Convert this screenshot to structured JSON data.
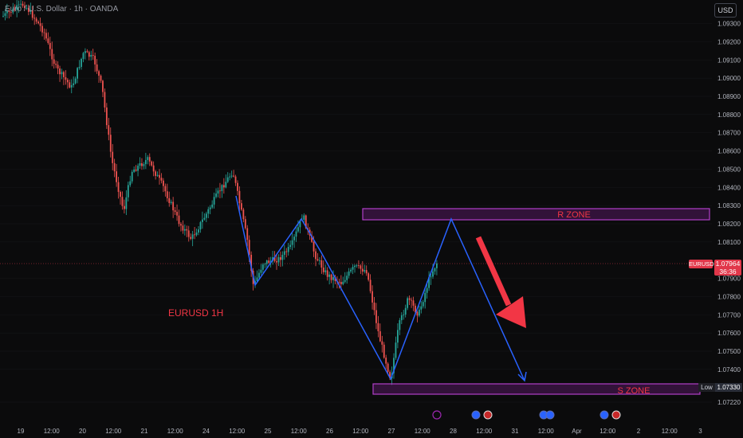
{
  "header": {
    "title": "Euro / U.S. Dollar · 1h · OANDA"
  },
  "currency_button": "USD",
  "current_price": {
    "symbol": "EURUSD",
    "value": "1.07964",
    "countdown": "36:36"
  },
  "low_marker": {
    "label": "Low",
    "value": "1.07330"
  },
  "annotations": {
    "chart_label": "EURUSD 1H",
    "r_zone": "R ZONE",
    "s_zone": "S ZONE"
  },
  "colors": {
    "up": "#26a69a",
    "down": "#ef5350",
    "zone": "#9c27b0",
    "path": "#2962ff",
    "arrow": "#f23645",
    "label": "#f23645"
  },
  "chart_data": {
    "type": "candlestick",
    "y_axis_ticks": [
      "1.09300",
      "1.09200",
      "1.09100",
      "1.09000",
      "1.08900",
      "1.08800",
      "1.08700",
      "1.08600",
      "1.08500",
      "1.08400",
      "1.08300",
      "1.08200",
      "1.08100",
      "1.07900",
      "1.07800",
      "1.07700",
      "1.07600",
      "1.07500",
      "1.07400",
      "1.07220"
    ],
    "y_tick_values": [
      1.093,
      1.092,
      1.091,
      1.09,
      1.089,
      1.088,
      1.087,
      1.086,
      1.085,
      1.084,
      1.083,
      1.082,
      1.081,
      1.079,
      1.078,
      1.077,
      1.076,
      1.075,
      1.074,
      1.0722
    ],
    "x_axis_ticks": [
      "19",
      "12:00",
      "20",
      "12:00",
      "21",
      "12:00",
      "24",
      "12:00",
      "25",
      "12:00",
      "26",
      "12:00",
      "27",
      "12:00",
      "28",
      "12:00",
      "31",
      "12:00",
      "Apr",
      "12:00",
      "2",
      "12:00",
      "3"
    ],
    "ylim": [
      1.0718,
      1.0935
    ],
    "zones": [
      {
        "name": "R ZONE",
        "from": 1.0822,
        "to": 1.0829
      },
      {
        "name": "S ZONE",
        "from": 1.0727,
        "to": 1.0733
      }
    ],
    "pattern_path": [
      {
        "x": "24 18:00",
        "y": 1.084
      },
      {
        "x": "25 02:00",
        "y": 1.0796
      },
      {
        "x": "25 12:00",
        "y": 1.0823
      },
      {
        "x": "26 00:00",
        "y": 1.0801
      },
      {
        "x": "27 00:00",
        "y": 1.0737
      },
      {
        "x": "28 00:00",
        "y": 1.0822
      },
      {
        "x": "31 06:00",
        "y": 1.0736
      }
    ]
  }
}
